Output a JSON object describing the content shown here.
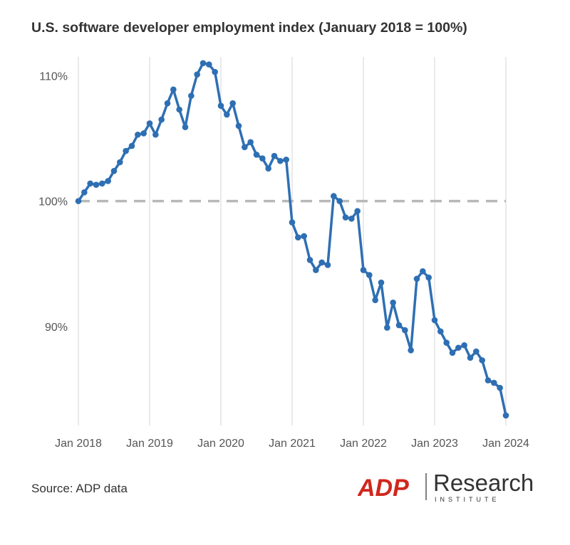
{
  "title": "U.S. software developer employment index (January 2018 = 100%)",
  "source": "Source: ADP data",
  "logo": {
    "brand": "ADP",
    "name": "Research",
    "sub": "INSTITUTE",
    "brand_color": "#d0271d"
  },
  "colors": {
    "line": "#2e6fb3",
    "grid": "#e4e4e4",
    "reference": "#b8b8b8"
  },
  "chart_data": {
    "type": "line",
    "title": "U.S. software developer employment index (January 2018 = 100%)",
    "xlabel": "",
    "ylabel": "",
    "x_ticks": [
      "Jan 2018",
      "Jan 2019",
      "Jan 2020",
      "Jan 2021",
      "Jan 2022",
      "Jan 2023",
      "Jan 2024"
    ],
    "y_ticks": [
      {
        "value": 90,
        "label": "90%"
      },
      {
        "value": 100,
        "label": "100%"
      },
      {
        "value": 110,
        "label": "110%"
      }
    ],
    "ylim": [
      82.1,
      111.5
    ],
    "reference_line": {
      "value": 100,
      "style": "dashed"
    },
    "grid": "vertical",
    "legend": "none",
    "series": [
      {
        "x_start": "2018-01",
        "frequency": "monthly",
        "values": [
          100.0,
          100.7,
          101.4,
          101.3,
          101.4,
          101.6,
          102.4,
          103.1,
          104.0,
          104.4,
          105.3,
          105.4,
          106.2,
          105.3,
          106.5,
          107.8,
          108.9,
          107.3,
          105.9,
          108.4,
          110.1,
          111.0,
          110.9,
          110.3,
          107.6,
          106.9,
          107.8,
          106.0,
          104.3,
          104.7,
          103.7,
          103.4,
          102.6,
          103.6,
          103.2,
          103.3,
          98.3,
          97.1,
          97.2,
          95.3,
          94.5,
          95.1,
          94.9,
          100.4,
          100.0,
          98.7,
          98.6,
          99.2,
          94.5,
          94.1,
          92.1,
          93.5,
          89.9,
          91.9,
          90.1,
          89.7,
          88.1,
          93.8,
          94.4,
          93.9,
          90.5,
          89.6,
          88.7,
          87.9,
          88.3,
          88.5,
          87.5,
          88.0,
          87.3,
          85.7,
          85.5,
          85.1,
          82.9
        ]
      }
    ]
  }
}
